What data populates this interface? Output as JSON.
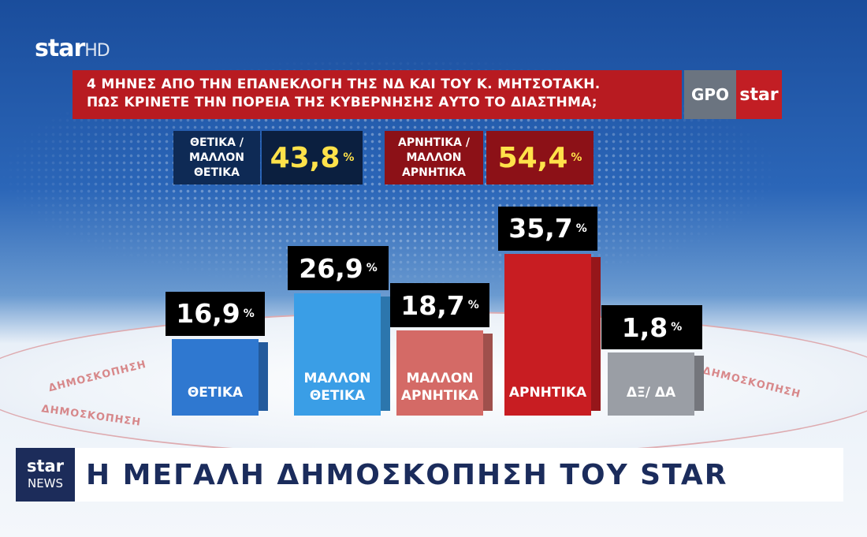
{
  "channel": {
    "logo": "star",
    "logo_suffix": "HD"
  },
  "question": {
    "line1": "4 ΜΗΝΕΣ ΑΠΟ ΤΗΝ ΕΠΑΝΕΚΛΟΓΗ ΤΗΣ ΝΔ ΚΑΙ ΤΟΥ Κ. ΜΗΤΣΟΤΑΚΗ.",
    "line2": "ΠΩΣ ΚΡΙΝΕΤΕ ΤΗΝ ΠΟΡΕΙΑ ΤΗΣ ΚΥΒΕΡΝΗΣΗΣ ΑΥΤΟ ΤΟ ΔΙΑΣΤΗΜΑ;"
  },
  "pollster": {
    "gpo": "GPO",
    "star": "star"
  },
  "summary": {
    "positive": {
      "label": "ΘΕΤΙΚΑ / ΜΑΛΛΟΝ ΘΕΤΙΚΑ",
      "value": "43,8",
      "unit": "%"
    },
    "negative": {
      "label": "ΑΡΝΗΤΙΚΑ / ΜΑΛΛΟΝ ΑΡΝΗΤΙΚΑ",
      "value": "54,4",
      "unit": "%"
    }
  },
  "floor_text": [
    "ΔΗΜΟΣΚΟΠΗΣΗ",
    "ΔΗΜΟΣΚΟΠΗΣΗ",
    "ΔΗΜΟΣΚΟΠΗΣΗ"
  ],
  "chart_data": {
    "type": "bar",
    "categories": [
      "ΘΕΤΙΚΑ",
      "ΜΑΛΛΟΝ ΘΕΤΙΚΑ",
      "ΜΑΛΛΟΝ ΑΡΝΗΤΙΚΑ",
      "ΑΡΝΗΤΙΚΑ",
      "ΔΞ/ ΔΑ"
    ],
    "values": [
      16.9,
      26.9,
      18.7,
      35.7,
      1.8
    ],
    "value_labels": [
      "16,9",
      "26,9",
      "18,7",
      "35,7",
      "1,8"
    ],
    "unit": "%",
    "colors": [
      "#2f78d0",
      "#3a9ee6",
      "#d46a66",
      "#c81d22",
      "#9a9ea5"
    ]
  },
  "ticker": {
    "logo_top": "star",
    "logo_bottom": "NEWS",
    "text": "Η ΜΕΓΑΛΗ ΔΗΜΟΣΚΟΠΗΣΗ ΤΟΥ STAR"
  }
}
